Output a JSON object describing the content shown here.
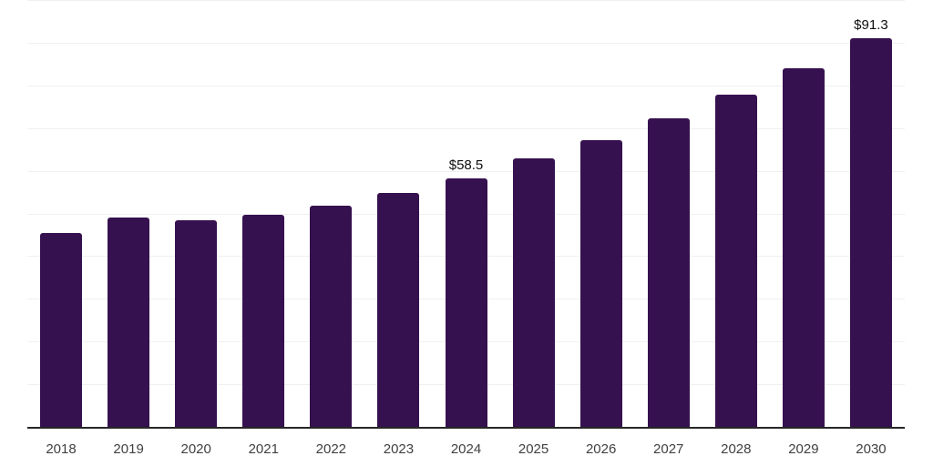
{
  "colors": {
    "background": "#ffffff",
    "bar": "#36114f",
    "grid": "#f0f0f0",
    "axis": "#262626",
    "tick_label": "#404040",
    "data_label": "#0d0d0d"
  },
  "chart_data": {
    "type": "bar",
    "title": "",
    "xlabel": "",
    "ylabel": "",
    "categories": [
      "2018",
      "2019",
      "2020",
      "2021",
      "2022",
      "2023",
      "2024",
      "2025",
      "2026",
      "2027",
      "2028",
      "2029",
      "2030"
    ],
    "values": [
      45.6,
      49.3,
      48.6,
      49.8,
      52.1,
      55.1,
      58.5,
      63.1,
      67.3,
      72.4,
      78.0,
      84.3,
      91.3
    ],
    "data_labels": [
      {
        "category": "2024",
        "text": "$58.5"
      },
      {
        "category": "2030",
        "text": "$91.3"
      }
    ],
    "value_prefix": "$",
    "ylim": [
      0,
      100
    ],
    "grid_step": 10,
    "grid": "horizontal only",
    "y_tick_labels_visible": false,
    "legend": "none"
  }
}
